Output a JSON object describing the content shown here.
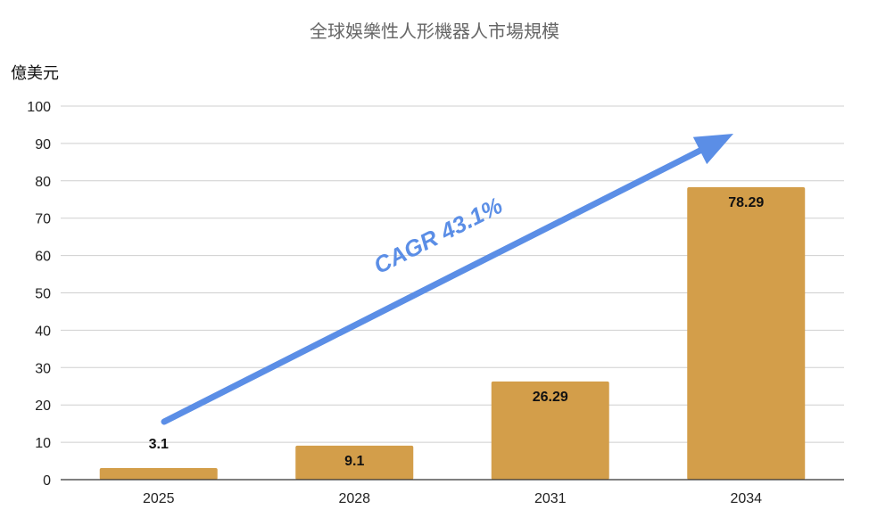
{
  "chart_data": {
    "type": "bar",
    "title": "全球娛樂性人形機器人市場規模",
    "ylabel": "億美元",
    "xlabel": "",
    "categories": [
      "2025",
      "2028",
      "2031",
      "2034"
    ],
    "values": [
      3.1,
      9.1,
      26.29,
      78.29
    ],
    "data_labels": [
      "3.1",
      "9.1",
      "26.29",
      "78.29"
    ],
    "ylim": [
      0,
      100
    ],
    "yticks": [
      "0",
      "10",
      "20",
      "30",
      "40",
      "50",
      "60",
      "70",
      "80",
      "90",
      "100"
    ],
    "grid": true,
    "bar_color": "#d39e4a",
    "annotation": {
      "text": "CAGR 43.1%",
      "color": "#5b8ee6"
    }
  }
}
